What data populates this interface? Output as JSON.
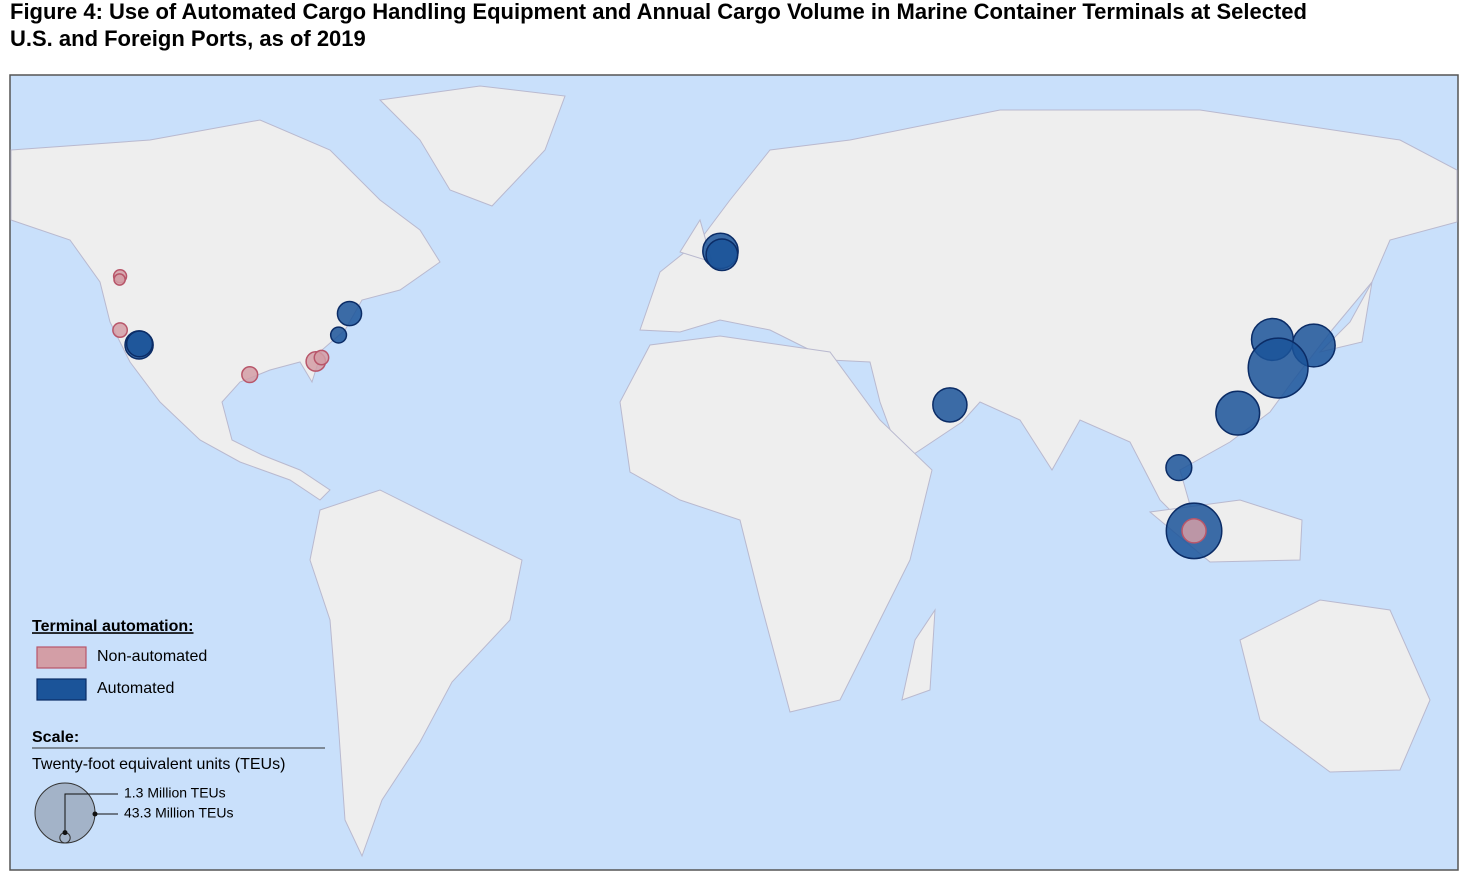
{
  "chart_data": {
    "type": "bubble-map",
    "title": [
      "Figure 4: Use of Automated Cargo Handling Equipment and Annual Cargo Volume in Marine Container Terminals at Selected",
      "U.S. and Foreign Ports, as of 2019"
    ],
    "legend": {
      "title": "Terminal automation:",
      "items": [
        {
          "label": "Non-automated",
          "color": "#d39ea6",
          "stroke": "#b8566a"
        },
        {
          "label": "Automated",
          "color": "#1b5499",
          "stroke": "#0b2c66"
        }
      ]
    },
    "scale": {
      "title": "Scale:",
      "subtitle": "Twenty-foot equivalent units (TEUs)",
      "items": [
        {
          "value": 1.3,
          "label": "1.3 Million TEUs"
        },
        {
          "value": 43.3,
          "label": "43.3 Million TEUs"
        }
      ]
    },
    "ports": [
      {
        "lon": -122.3,
        "lat": 47.6,
        "teu": 2,
        "group": 0
      },
      {
        "lon": -122.4,
        "lat": 47.0,
        "teu": 1.5,
        "group": 0
      },
      {
        "lon": -122.3,
        "lat": 37.8,
        "teu": 2.5,
        "group": 0
      },
      {
        "lon": -118.3,
        "lat": 35.1,
        "teu": 9.5,
        "group": 1
      },
      {
        "lon": -118.2,
        "lat": 35.3,
        "teu": 8,
        "group": 1
      },
      {
        "lon": -95.0,
        "lat": 29.7,
        "teu": 3,
        "group": 0
      },
      {
        "lon": -81.1,
        "lat": 32.1,
        "teu": 4.5,
        "group": 0
      },
      {
        "lon": -79.9,
        "lat": 32.8,
        "teu": 2.5,
        "group": 0
      },
      {
        "lon": -76.3,
        "lat": 36.9,
        "teu": 3,
        "group": 1
      },
      {
        "lon": -74.0,
        "lat": 40.8,
        "teu": 7,
        "group": 1
      },
      {
        "lon": 4.1,
        "lat": 52.2,
        "teu": 15,
        "group": 1
      },
      {
        "lon": 4.4,
        "lat": 51.5,
        "teu": 12,
        "group": 1
      },
      {
        "lon": 52.4,
        "lat": 24.2,
        "teu": 14,
        "group": 1
      },
      {
        "lon": 120.3,
        "lat": 36.1,
        "teu": 21,
        "group": 1
      },
      {
        "lon": 129.0,
        "lat": 35.0,
        "teu": 22,
        "group": 1
      },
      {
        "lon": 121.5,
        "lat": 30.9,
        "teu": 43,
        "group": 1
      },
      {
        "lon": 113.0,
        "lat": 22.7,
        "teu": 23,
        "group": 1
      },
      {
        "lon": 100.6,
        "lat": 12.8,
        "teu": 8,
        "group": 1
      },
      {
        "lon": 103.8,
        "lat": 1.3,
        "teu": 37,
        "group": 1
      },
      {
        "lon": 103.8,
        "lat": 1.3,
        "teu": 7,
        "group": 0
      }
    ]
  }
}
